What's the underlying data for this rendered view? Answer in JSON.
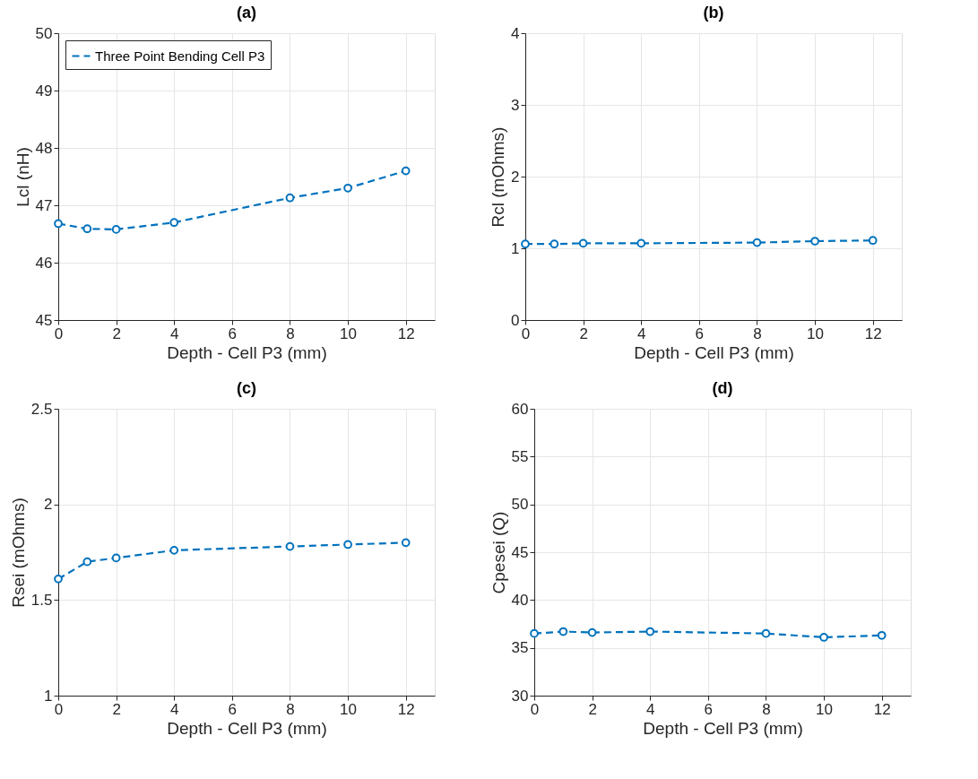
{
  "chart_data": [
    {
      "type": "line",
      "title": "(a)",
      "xlabel": "Depth - Cell P3 (mm)",
      "ylabel": "Lcl (nH)",
      "x": [
        0,
        1,
        2,
        4,
        8,
        10,
        12
      ],
      "xlim": [
        0,
        13
      ],
      "xticks": [
        0,
        2,
        4,
        6,
        8,
        10,
        12
      ],
      "ylim": [
        45,
        50
      ],
      "yticks": [
        45,
        46,
        47,
        48,
        49,
        50
      ],
      "grid": true,
      "legend": "top left",
      "marker": "circle",
      "line_style": "dashed",
      "series": [
        {
          "name": "Three Point Bending Cell P3",
          "color": "#0072bd",
          "values": [
            46.68,
            46.59,
            46.58,
            46.7,
            47.13,
            47.3,
            47.6
          ]
        }
      ]
    },
    {
      "type": "line",
      "title": "(b)",
      "xlabel": "Depth - Cell P3 (mm)",
      "ylabel": "Rcl (mOhms)",
      "x": [
        0,
        1,
        2,
        4,
        8,
        10,
        12
      ],
      "xlim": [
        0,
        13
      ],
      "xticks": [
        0,
        2,
        4,
        6,
        8,
        10,
        12
      ],
      "ylim": [
        0,
        4
      ],
      "yticks": [
        0,
        1,
        2,
        3,
        4
      ],
      "grid": true,
      "marker": "circle",
      "line_style": "dashed",
      "series": [
        {
          "color": "#0072bd",
          "values": [
            1.06,
            1.06,
            1.07,
            1.07,
            1.08,
            1.1,
            1.11
          ]
        }
      ]
    },
    {
      "type": "line",
      "title": "(c)",
      "xlabel": "Depth - Cell P3 (mm)",
      "ylabel": "Rsei (mOhms)",
      "x": [
        0,
        1,
        2,
        4,
        8,
        10,
        12
      ],
      "xlim": [
        0,
        13
      ],
      "xticks": [
        0,
        2,
        4,
        6,
        8,
        10,
        12
      ],
      "ylim": [
        1,
        2.5
      ],
      "yticks": [
        1,
        1.5,
        2,
        2.5
      ],
      "grid": true,
      "marker": "circle",
      "line_style": "dashed",
      "series": [
        {
          "color": "#0072bd",
          "values": [
            1.61,
            1.7,
            1.72,
            1.76,
            1.78,
            1.79,
            1.8
          ]
        }
      ]
    },
    {
      "type": "line",
      "title": "(d)",
      "xlabel": "Depth - Cell P3 (mm)",
      "ylabel": "Cpesei (Q)",
      "x": [
        0,
        1,
        2,
        4,
        8,
        10,
        12
      ],
      "xlim": [
        0,
        13
      ],
      "xticks": [
        0,
        2,
        4,
        6,
        8,
        10,
        12
      ],
      "ylim": [
        30,
        60
      ],
      "yticks": [
        30,
        35,
        40,
        45,
        50,
        55,
        60
      ],
      "grid": true,
      "marker": "circle",
      "line_style": "dashed",
      "series": [
        {
          "color": "#0072bd",
          "values": [
            36.5,
            36.7,
            36.6,
            36.7,
            36.5,
            36.1,
            36.3
          ]
        }
      ]
    }
  ]
}
